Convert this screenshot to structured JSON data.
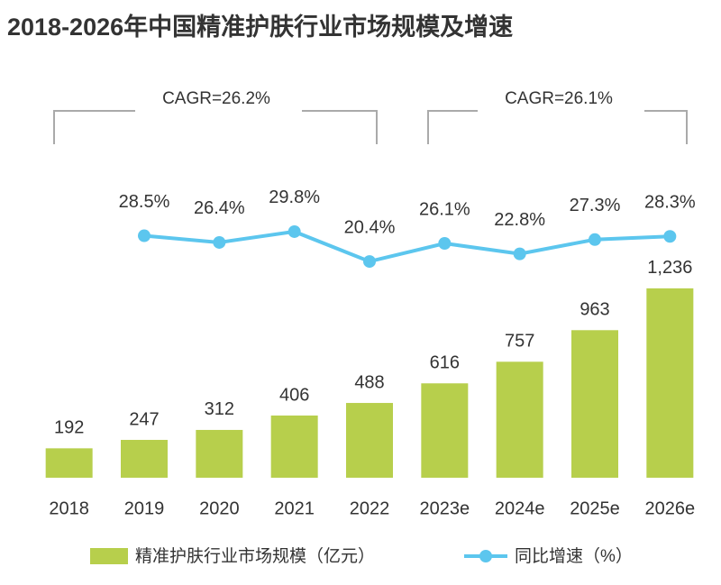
{
  "chart_data": {
    "type": "bar",
    "title": "2018-2026年中国精准护肤行业市场规模及增速",
    "categories": [
      "2018",
      "2019",
      "2020",
      "2021",
      "2022",
      "2023e",
      "2024e",
      "2025e",
      "2026e"
    ],
    "series": [
      {
        "name": "精准护肤行业市场规模（亿元）",
        "type": "bar",
        "color": "#b7cf4c",
        "values": [
          192,
          247,
          312,
          406,
          488,
          616,
          757,
          963,
          1236
        ],
        "value_labels": [
          "192",
          "247",
          "312",
          "406",
          "488",
          "616",
          "757",
          "963",
          "1,236"
        ]
      },
      {
        "name": "同比增速（%）",
        "type": "line",
        "axis": "y2",
        "color": "#5cc6ee",
        "values": [
          null,
          28.5,
          26.4,
          29.8,
          20.4,
          26.1,
          22.8,
          27.3,
          28.3
        ],
        "value_labels": [
          null,
          "28.5%",
          "26.4%",
          "29.8%",
          "20.4%",
          "26.1%",
          "22.8%",
          "27.3%",
          "28.3%"
        ]
      }
    ],
    "ylim": [
      0,
      1500
    ],
    "y2lim": [
      0,
      40
    ],
    "annotations": [
      {
        "text": "CAGR=26.2%"
      },
      {
        "text": "CAGR=26.1%"
      }
    ]
  }
}
